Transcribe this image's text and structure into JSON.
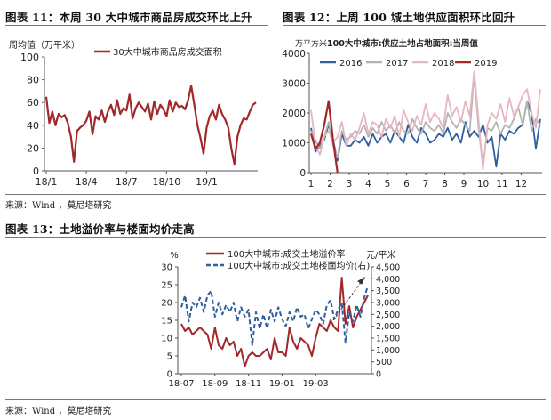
{
  "charts": {
    "fig11": {
      "title": "图表 11：本周 30 大中城市商品房成交环比上升"
    },
    "fig12": {
      "title": "图表 12：上周 100 城土地供应面积环比回升"
    },
    "fig13": {
      "title": "图表 13：土地溢价率与楼面均价走高"
    }
  },
  "sources": {
    "top": "来源：Wind ，莫尼塔研究",
    "bottom": "来源：Wind ，莫尼塔研究"
  },
  "chart_data": [
    {
      "type": "line",
      "ylabel": "周均值（万平米）",
      "ylim": [
        0,
        100
      ],
      "yticks": [
        0,
        20,
        40,
        60,
        80,
        100
      ],
      "xtick_labels": [
        "18/1",
        "18/4",
        "18/7",
        "18/10",
        "19/1"
      ],
      "xtick_positions": [
        0,
        13,
        26,
        39,
        52
      ],
      "grid": false,
      "legend": "top",
      "series": [
        {
          "name": "30大中城市商品房成交面积",
          "color": "#a3282b",
          "values": [
            65,
            42,
            52,
            40,
            50,
            47,
            49,
            42,
            30,
            8,
            35,
            38,
            40,
            44,
            52,
            32,
            48,
            45,
            53,
            43,
            52,
            58,
            49,
            62,
            50,
            55,
            53,
            67,
            46,
            55,
            60,
            56,
            52,
            59,
            45,
            61,
            50,
            58,
            54,
            48,
            62,
            52,
            60,
            56,
            57,
            54,
            62,
            75,
            58,
            40,
            29,
            15,
            38,
            48,
            53,
            45,
            58,
            50,
            45,
            38,
            20,
            6,
            30,
            40,
            46,
            45,
            52,
            58,
            60
          ]
        }
      ]
    },
    {
      "type": "line",
      "ylabel": "万平方米",
      "ylim": [
        0,
        4000
      ],
      "yticks": [
        0,
        1000,
        2000,
        3000,
        4000
      ],
      "xtick_labels": [
        "1",
        "2",
        "3",
        "4",
        "5",
        "6",
        "7",
        "8",
        "9",
        "10",
        "11",
        "12"
      ],
      "xlim": [
        1,
        13
      ],
      "grid": false,
      "legend": "top",
      "series_title": "100大中城市:供应土地占地面积:当周值",
      "series": [
        {
          "name": "2016",
          "color": "#2f5f9e",
          "values": [
            1500,
            700,
            900,
            1100,
            1600,
            1100,
            400,
            1300,
            900,
            900,
            1100,
            1000,
            1200,
            900,
            1300,
            1000,
            1200,
            1300,
            1000,
            1400,
            1200,
            1000,
            1600,
            1200,
            1000,
            1500,
            1300,
            1000,
            1100,
            1300,
            1200,
            1500,
            1100,
            1300,
            1000,
            1700,
            1200,
            1400,
            1200,
            1600,
            1000,
            1200,
            200,
            1300,
            1100,
            1400,
            1300,
            1500,
            1600,
            2400,
            2000,
            800,
            1800
          ]
        },
        {
          "name": "2017",
          "color": "#b4b4b4",
          "values": [
            1400,
            1100,
            800,
            1200,
            1700,
            900,
            500,
            1400,
            1100,
            1200,
            1400,
            1300,
            1600,
            1200,
            1500,
            1300,
            1700,
            1400,
            1600,
            1300,
            1700,
            1400,
            1300,
            1800,
            1500,
            1300,
            1700,
            1500,
            1400,
            1600,
            1300,
            2000,
            1700,
            1500,
            1800,
            1600,
            1400,
            3300,
            1500,
            200,
            1500,
            1400,
            1700,
            1300,
            1600,
            1500,
            1800,
            2200,
            1600,
            2400,
            1400,
            1800,
            1600
          ]
        },
        {
          "name": "2018",
          "color": "#e7b7bf",
          "values": [
            2100,
            900,
            600,
            1200,
            1400,
            1000,
            1200,
            1700,
            900,
            1300,
            1100,
            1500,
            2000,
            1300,
            1700,
            1600,
            1200,
            1800,
            1500,
            1900,
            1200,
            2100,
            1700,
            1400,
            1900,
            1600,
            2300,
            1700,
            2000,
            1800,
            1500,
            2600,
            1900,
            2200,
            1700,
            2400,
            1900,
            3400,
            1800,
            100,
            1600,
            2000,
            1800,
            2300,
            1700,
            2500,
            1900,
            2200,
            2600,
            2800,
            2000,
            1500,
            2800
          ]
        },
        {
          "name": "2019",
          "color": "#a3282b",
          "values": [
            1300,
            800,
            1000,
            1600,
            2400,
            1100,
            0
          ]
        }
      ]
    },
    {
      "type": "line",
      "ylim": [
        0,
        30
      ],
      "yticks": [
        0,
        5,
        10,
        15,
        20,
        25,
        30
      ],
      "y_unit_label": "%",
      "ylim_right": [
        0,
        4500
      ],
      "yticks_right": [
        "0",
        "500",
        "1,000",
        "1,500",
        "2,000",
        "2,500",
        "3,000",
        "3,500",
        "4,000",
        "4,500"
      ],
      "y_unit_label_right": "元/平米",
      "xtick_labels": [
        "18-07",
        "18-09",
        "18-11",
        "19-01",
        "19-03"
      ],
      "xtick_positions": [
        0,
        9,
        18,
        27,
        36
      ],
      "grid": false,
      "legend": "top",
      "series": [
        {
          "name": "100大中城市:成交土地溢价率",
          "color": "#a3282b",
          "axis": "left",
          "values": [
            14,
            12,
            13,
            11,
            12,
            13,
            12,
            11,
            7,
            13,
            8,
            7,
            10,
            8,
            9,
            5,
            7,
            2,
            5,
            6,
            5,
            5,
            6,
            7,
            4,
            10,
            6,
            6,
            5,
            13,
            9,
            7,
            10,
            9,
            8,
            5,
            10,
            14,
            13,
            12,
            15,
            13,
            12,
            27,
            14,
            19,
            13,
            16,
            18,
            20,
            22
          ]
        },
        {
          "name": "100大中城市:成交土地楼面均价(右)",
          "color": "#2f5f9e",
          "axis": "right",
          "dashed": true,
          "values": [
            2800,
            3300,
            2200,
            3000,
            2800,
            3200,
            2600,
            3300,
            3500,
            2400,
            3000,
            2500,
            2900,
            2600,
            3000,
            2200,
            2800,
            2400,
            2700,
            1200,
            2600,
            1900,
            2500,
            1900,
            2700,
            2200,
            2800,
            2300,
            2000,
            2600,
            2200,
            2800,
            2400,
            2500,
            1900,
            2300,
            2700,
            2500,
            2100,
            2900,
            3100,
            2300,
            2700,
            3000,
            1300,
            2600,
            2200,
            2900,
            2400,
            3200,
            3700
          ]
        }
      ]
    }
  ]
}
